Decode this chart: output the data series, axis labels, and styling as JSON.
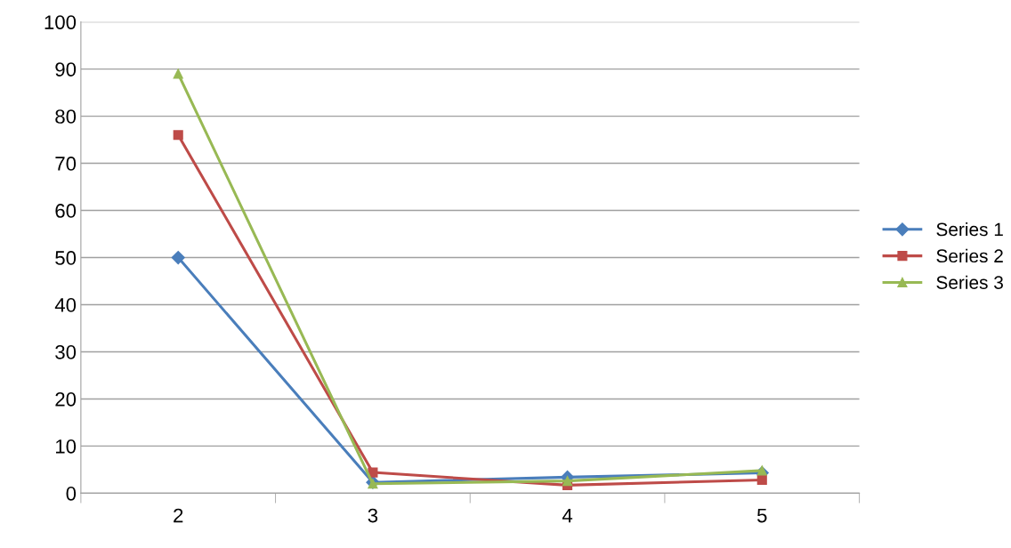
{
  "chart_data": {
    "type": "line",
    "categories": [
      "2",
      "3",
      "4",
      "5"
    ],
    "series": [
      {
        "name": "Series 1",
        "color": "#4a7ebb",
        "marker": "diamond",
        "values": [
          50,
          2.3,
          3.4,
          4.3
        ]
      },
      {
        "name": "Series 2",
        "color": "#be4b48",
        "marker": "square",
        "values": [
          76,
          4.4,
          1.7,
          2.8
        ]
      },
      {
        "name": "Series 3",
        "color": "#98b954",
        "marker": "triangle",
        "values": [
          89,
          2.0,
          2.6,
          4.8
        ]
      }
    ],
    "ylim": [
      0,
      100
    ],
    "yticks": [
      0,
      10,
      20,
      30,
      40,
      50,
      60,
      70,
      80,
      90,
      100
    ],
    "grid": "y",
    "legend": "right"
  }
}
